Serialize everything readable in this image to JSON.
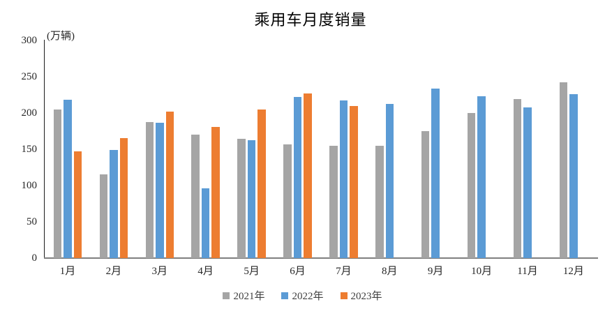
{
  "title": "乘用车月度销量",
  "chart_data": {
    "type": "bar",
    "title": "乘用车月度销量",
    "ylabel": "(万辆)",
    "categories": [
      "1月",
      "2月",
      "3月",
      "4月",
      "5月",
      "6月",
      "7月",
      "8月",
      "9月",
      "10月",
      "11月",
      "12月"
    ],
    "series": [
      {
        "name": "2021年",
        "color": "#a5a5a5",
        "values": [
          204.5,
          115.6,
          187.4,
          170.4,
          164.6,
          156.9,
          155.1,
          155.2,
          175.1,
          200.4,
          219.2,
          242.2
        ]
      },
      {
        "name": "2022年",
        "color": "#5b9bd5",
        "values": [
          218.6,
          148.7,
          186.4,
          96.5,
          162.3,
          222.2,
          217.4,
          212.5,
          233.2,
          223.1,
          207.5,
          226.3
        ]
      },
      {
        "name": "2023年",
        "color": "#ed7d31",
        "values": [
          146.9,
          165.3,
          201.7,
          181.1,
          205.2,
          226.8,
          210.0,
          null,
          null,
          null,
          null,
          null
        ]
      }
    ],
    "ylim": [
      0,
      300
    ],
    "yticks": [
      0,
      50,
      100,
      150,
      200,
      250,
      300
    ],
    "grid": false,
    "legend_position": "bottom",
    "axis_line_color": "#1a1a1a",
    "baseline_color": "#7f7f7f",
    "text_color": "#262626"
  }
}
